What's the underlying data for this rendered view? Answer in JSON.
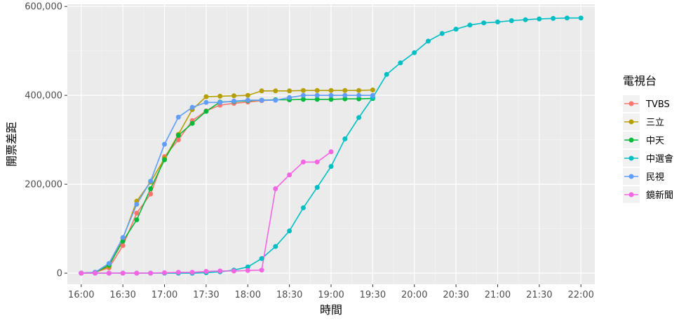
{
  "chart_data": {
    "type": "line",
    "xlabel": "時間",
    "ylabel": "開票差距",
    "xlim": [
      "15:50",
      "22:10"
    ],
    "ylim": [
      -25000,
      605000
    ],
    "x_ticks": [
      "16:00",
      "16:30",
      "17:00",
      "17:30",
      "18:00",
      "18:30",
      "19:00",
      "19:30",
      "20:00",
      "20:30",
      "21:00",
      "21:30",
      "22:00"
    ],
    "y_ticks": [
      0,
      200000,
      400000,
      600000
    ],
    "y_tick_labels": [
      "0",
      "200,000",
      "400,000",
      "600,000"
    ],
    "grid": true,
    "legend": {
      "title": "電視台",
      "position": "right"
    },
    "series": [
      {
        "name": "TVBS",
        "color": "#F8766D",
        "points": [
          [
            "16:00",
            0
          ],
          [
            "16:10",
            2000
          ],
          [
            "16:20",
            12000
          ],
          [
            "16:30",
            62000
          ],
          [
            "16:40",
            135000
          ],
          [
            "16:50",
            178000
          ],
          [
            "17:00",
            262000
          ],
          [
            "17:10",
            300000
          ],
          [
            "17:20",
            343000
          ],
          [
            "17:30",
            365000
          ],
          [
            "17:40",
            378000
          ],
          [
            "17:50",
            382000
          ],
          [
            "18:00",
            385000
          ],
          [
            "18:10",
            388000
          ],
          [
            "18:20",
            390000
          ]
        ]
      },
      {
        "name": "三立",
        "color": "#B79F00",
        "points": [
          [
            "16:00",
            0
          ],
          [
            "16:10",
            2000
          ],
          [
            "16:20",
            15000
          ],
          [
            "16:30",
            78000
          ],
          [
            "16:40",
            162000
          ],
          [
            "16:50",
            205000
          ],
          [
            "17:00",
            258000
          ],
          [
            "17:10",
            312000
          ],
          [
            "17:20",
            368000
          ],
          [
            "17:30",
            397000
          ],
          [
            "17:40",
            398000
          ],
          [
            "17:50",
            399000
          ],
          [
            "18:00",
            400000
          ],
          [
            "18:10",
            410000
          ],
          [
            "18:20",
            410000
          ],
          [
            "18:30",
            410000
          ],
          [
            "18:40",
            411000
          ],
          [
            "18:50",
            411000
          ],
          [
            "19:00",
            411000
          ],
          [
            "19:10",
            411000
          ],
          [
            "19:20",
            411000
          ],
          [
            "19:30",
            412000
          ]
        ]
      },
      {
        "name": "中天",
        "color": "#00BA38",
        "points": [
          [
            "16:00",
            0
          ],
          [
            "16:10",
            2000
          ],
          [
            "16:20",
            18000
          ],
          [
            "16:30",
            72000
          ],
          [
            "16:40",
            120000
          ],
          [
            "16:50",
            190000
          ],
          [
            "17:00",
            255000
          ],
          [
            "17:10",
            310000
          ],
          [
            "17:20",
            337000
          ],
          [
            "17:30",
            364000
          ],
          [
            "17:40",
            385000
          ],
          [
            "17:50",
            386000
          ],
          [
            "18:00",
            388000
          ],
          [
            "18:10",
            389000
          ],
          [
            "18:20",
            390000
          ],
          [
            "18:30",
            390000
          ],
          [
            "18:40",
            391000
          ],
          [
            "18:50",
            391000
          ],
          [
            "19:00",
            391000
          ],
          [
            "19:10",
            392000
          ],
          [
            "19:20",
            392000
          ],
          [
            "19:30",
            393000
          ]
        ]
      },
      {
        "name": "中選會",
        "color": "#00BFC4",
        "points": [
          [
            "16:00",
            0
          ],
          [
            "16:10",
            0
          ],
          [
            "16:20",
            0
          ],
          [
            "16:30",
            0
          ],
          [
            "16:40",
            0
          ],
          [
            "16:50",
            0
          ],
          [
            "17:00",
            0
          ],
          [
            "17:10",
            0
          ],
          [
            "17:20",
            0
          ],
          [
            "17:30",
            1000
          ],
          [
            "17:40",
            3000
          ],
          [
            "17:50",
            7000
          ],
          [
            "18:00",
            14000
          ],
          [
            "18:10",
            33000
          ],
          [
            "18:20",
            60000
          ],
          [
            "18:30",
            95000
          ],
          [
            "18:40",
            147000
          ],
          [
            "18:50",
            193000
          ],
          [
            "19:00",
            240000
          ],
          [
            "19:10",
            302000
          ],
          [
            "19:20",
            350000
          ],
          [
            "19:30",
            395000
          ],
          [
            "19:40",
            447000
          ],
          [
            "19:50",
            473000
          ],
          [
            "20:00",
            496000
          ],
          [
            "20:10",
            522000
          ],
          [
            "20:20",
            539000
          ],
          [
            "20:30",
            549000
          ],
          [
            "20:40",
            558000
          ],
          [
            "20:50",
            563000
          ],
          [
            "21:00",
            565000
          ],
          [
            "21:10",
            568000
          ],
          [
            "21:20",
            570000
          ],
          [
            "21:30",
            572000
          ],
          [
            "21:40",
            573000
          ],
          [
            "21:50",
            574000
          ],
          [
            "22:00",
            574000
          ]
        ]
      },
      {
        "name": "民視",
        "color": "#619CFF",
        "points": [
          [
            "16:00",
            0
          ],
          [
            "16:10",
            2000
          ],
          [
            "16:20",
            22000
          ],
          [
            "16:30",
            80000
          ],
          [
            "16:40",
            155000
          ],
          [
            "16:50",
            207000
          ],
          [
            "17:00",
            290000
          ],
          [
            "17:10",
            351000
          ],
          [
            "17:20",
            373000
          ],
          [
            "17:30",
            384000
          ],
          [
            "17:40",
            384000
          ],
          [
            "17:50",
            387000
          ],
          [
            "18:00",
            389000
          ],
          [
            "18:10",
            389000
          ],
          [
            "18:20",
            389000
          ],
          [
            "18:30",
            395000
          ],
          [
            "18:40",
            400000
          ],
          [
            "18:50",
            400000
          ],
          [
            "19:00",
            400000
          ],
          [
            "19:10",
            400000
          ],
          [
            "19:20",
            400000
          ],
          [
            "19:30",
            400000
          ]
        ]
      },
      {
        "name": "鏡新聞",
        "color": "#F564E3",
        "points": [
          [
            "16:00",
            0
          ],
          [
            "16:10",
            0
          ],
          [
            "16:20",
            0
          ],
          [
            "16:30",
            0
          ],
          [
            "16:40",
            0
          ],
          [
            "16:50",
            0
          ],
          [
            "17:00",
            1000
          ],
          [
            "17:10",
            2000
          ],
          [
            "17:20",
            2000
          ],
          [
            "17:30",
            4000
          ],
          [
            "17:40",
            5000
          ],
          [
            "17:50",
            5000
          ],
          [
            "18:00",
            6000
          ],
          [
            "18:10",
            7000
          ],
          [
            "18:20",
            190000
          ],
          [
            "18:30",
            221000
          ],
          [
            "18:40",
            250000
          ],
          [
            "18:50",
            250000
          ],
          [
            "19:00",
            273000
          ]
        ]
      }
    ]
  }
}
